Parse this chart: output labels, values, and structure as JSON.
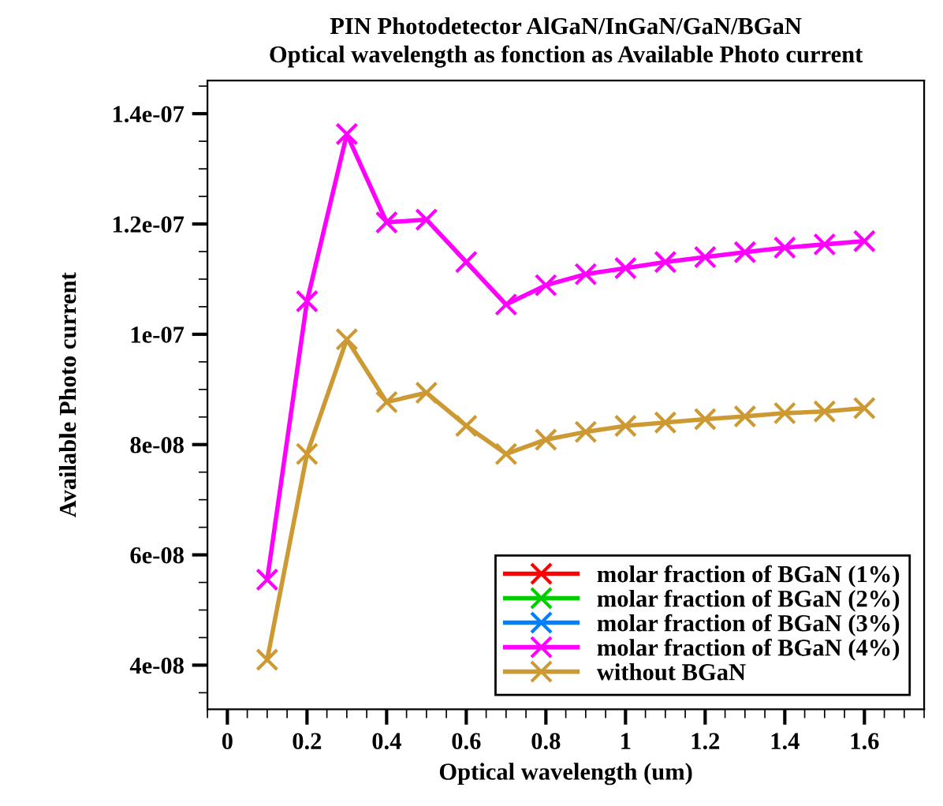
{
  "chart_data": {
    "type": "line",
    "title": "PIN Photodetector AlGaN/InGaN/GaN/BGaN",
    "subtitle": "Optical wavelength as fonction as Available Photo current",
    "xlabel": "Optical wavelength (um)",
    "ylabel": "Available Photo current",
    "x": [
      0.1,
      0.2,
      0.3,
      0.4,
      0.5,
      0.6,
      0.7,
      0.8,
      0.9,
      1.0,
      1.1,
      1.2,
      1.3,
      1.4,
      1.5,
      1.6
    ],
    "series": [
      {
        "name": "molar fraction of BGaN (1%)",
        "color": "#ff0000",
        "values": [
          null,
          null,
          null,
          null,
          null,
          null,
          null,
          null,
          null,
          null,
          null,
          null,
          null,
          null,
          null,
          null
        ]
      },
      {
        "name": "molar fraction of BGaN (2%)",
        "color": "#00cc00",
        "values": [
          null,
          null,
          null,
          null,
          null,
          null,
          null,
          null,
          null,
          null,
          null,
          null,
          null,
          null,
          null,
          null
        ]
      },
      {
        "name": "molar fraction of BGaN (3%)",
        "color": "#0080ff",
        "values": [
          null,
          null,
          null,
          null,
          null,
          null,
          null,
          null,
          null,
          null,
          null,
          null,
          null,
          null,
          null,
          null
        ]
      },
      {
        "name": "molar fraction of BGaN (4%)",
        "color": "#ff00ff",
        "values": [
          5.55e-08,
          1.06e-07,
          1.363e-07,
          1.203e-07,
          1.208e-07,
          1.131e-07,
          1.054e-07,
          1.089e-07,
          1.109e-07,
          1.12e-07,
          1.131e-07,
          1.14e-07,
          1.149e-07,
          1.157e-07,
          1.163e-07,
          1.169e-07
        ]
      },
      {
        "name": "without BGaN",
        "color": "#cc9933",
        "values": [
          4.1e-08,
          7.83e-08,
          9.91e-08,
          8.77e-08,
          8.94e-08,
          8.34e-08,
          7.83e-08,
          8.09e-08,
          8.23e-08,
          8.34e-08,
          8.4e-08,
          8.46e-08,
          8.51e-08,
          8.57e-08,
          8.6e-08,
          8.66e-08
        ]
      }
    ],
    "xlim": [
      -0.05,
      1.75
    ],
    "ylim": [
      3.2e-08,
      1.46e-07
    ],
    "xticks": [
      0,
      0.2,
      0.4,
      0.6,
      0.8,
      1,
      1.2,
      1.4,
      1.6
    ],
    "yticks": [
      {
        "value": 4e-08,
        "label": "4e-08"
      },
      {
        "value": 6e-08,
        "label": "6e-08"
      },
      {
        "value": 8e-08,
        "label": "8e-08"
      },
      {
        "value": 1e-07,
        "label": "1e-07"
      },
      {
        "value": 1.2e-07,
        "label": "1.2e-07"
      },
      {
        "value": 1.4e-07,
        "label": "1.4e-07"
      }
    ],
    "grid": false,
    "legend": "bottom right",
    "marker": "cross",
    "line_style": "solid"
  }
}
